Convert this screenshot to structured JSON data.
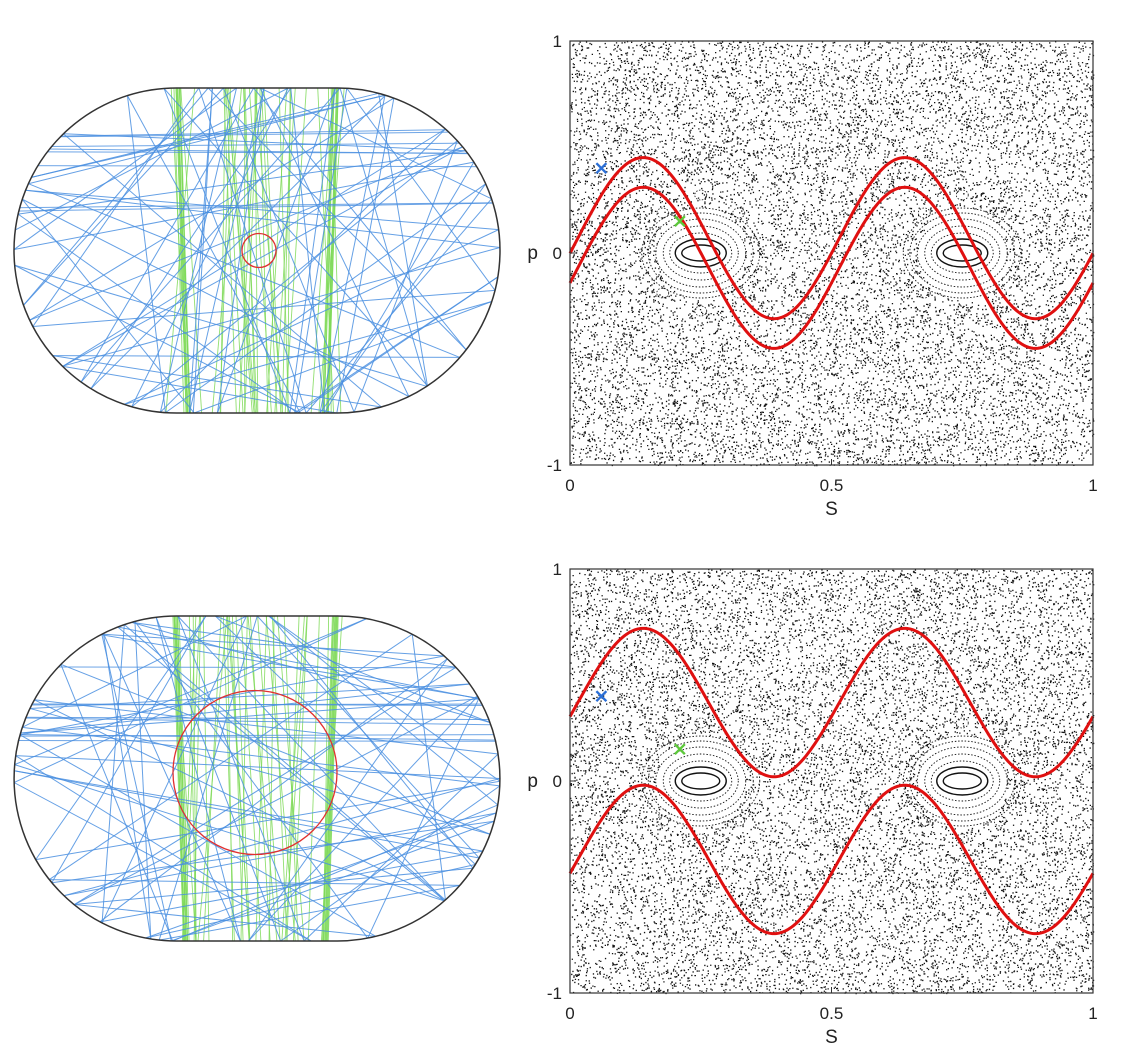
{
  "colors": {
    "chaotic_orbit": "#4a8fe0",
    "bouncing_orbit": "#7ed957",
    "perturbation_circle": "#e03030",
    "invariant_curve": "#e01010",
    "sea_points": "#111111",
    "boundary": "#333333"
  },
  "chart_data": [
    {
      "type": "billiard",
      "panel": "top-left",
      "boundary": "stadium",
      "orbits": [
        {
          "kind": "chaotic",
          "color": "#4a8fe0"
        },
        {
          "kind": "bouncing-ball",
          "color": "#7ed957"
        }
      ],
      "circle_radius_fraction": 0.07,
      "circle_center": "center"
    },
    {
      "type": "scatter",
      "panel": "top-right",
      "xlabel": "S",
      "ylabel": "p",
      "xlim": [
        0,
        1
      ],
      "ylim": [
        -1,
        1
      ],
      "xticks": [
        "0",
        "0.5",
        "1"
      ],
      "yticks": [
        "-1",
        "0",
        "1"
      ],
      "markers": [
        {
          "name": "blue-marker",
          "x": 0.06,
          "y": 0.4,
          "color": "#2b6fd6",
          "symbol": "x"
        },
        {
          "name": "green-marker",
          "x": 0.21,
          "y": 0.15,
          "color": "#5cc83a",
          "symbol": "x"
        }
      ],
      "islands": [
        {
          "x": 0.25,
          "y": 0
        },
        {
          "x": 0.75,
          "y": 0
        }
      ],
      "curves": [
        {
          "offset": 0.07,
          "amplitude": 0.38,
          "phase_x": 0.14,
          "color": "#e01010"
        },
        {
          "offset": -0.07,
          "amplitude": 0.38,
          "phase_x": 0.14,
          "color": "#e01010"
        }
      ]
    },
    {
      "type": "billiard",
      "panel": "bottom-left",
      "boundary": "stadium",
      "orbits": [
        {
          "kind": "chaotic",
          "color": "#4a8fe0"
        },
        {
          "kind": "bouncing-ball",
          "color": "#7ed957"
        }
      ],
      "circle_radius_fraction": 0.33,
      "circle_center": "center"
    },
    {
      "type": "scatter",
      "panel": "bottom-right",
      "xlabel": "S",
      "ylabel": "p",
      "xlim": [
        0,
        1
      ],
      "ylim": [
        -1,
        1
      ],
      "xticks": [
        "0",
        "0.5",
        "1"
      ],
      "yticks": [
        "-1",
        "0",
        "1"
      ],
      "markers": [
        {
          "name": "blue-marker",
          "x": 0.06,
          "y": 0.4,
          "color": "#2b6fd6",
          "symbol": "x"
        },
        {
          "name": "green-marker",
          "x": 0.21,
          "y": 0.15,
          "color": "#5cc83a",
          "symbol": "x"
        }
      ],
      "islands": [
        {
          "x": 0.25,
          "y": 0
        },
        {
          "x": 0.75,
          "y": 0
        }
      ],
      "curves": [
        {
          "offset": 0.37,
          "amplitude": 0.35,
          "phase_x": 0.14,
          "color": "#e01010"
        },
        {
          "offset": -0.37,
          "amplitude": 0.35,
          "phase_x": 0.14,
          "color": "#e01010"
        }
      ]
    }
  ]
}
